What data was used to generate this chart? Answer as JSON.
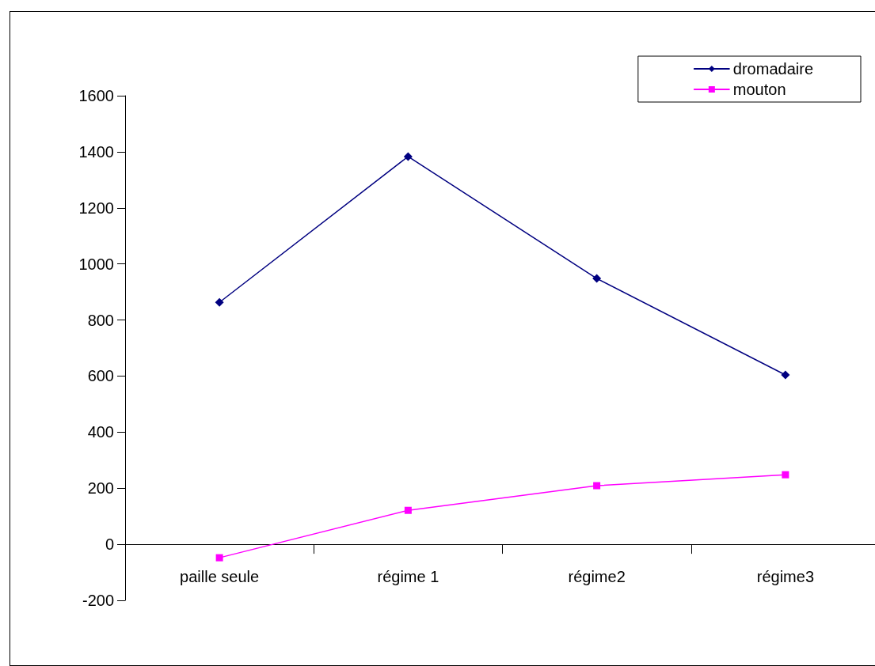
{
  "chart_data": {
    "type": "line",
    "categories": [
      "paille seule",
      "régime 1",
      "régime2",
      "régime3"
    ],
    "series": [
      {
        "name": "dromadaire",
        "color": "#000080",
        "marker": "diamond",
        "values": [
          863,
          1383,
          948,
          604
        ]
      },
      {
        "name": "mouton",
        "color": "#ff00ff",
        "marker": "square",
        "values": [
          -48,
          121,
          209,
          248
        ]
      }
    ],
    "ylim": [
      -200,
      1600
    ],
    "yticks": [
      -200,
      0,
      200,
      400,
      600,
      800,
      1000,
      1200,
      1400,
      1600
    ],
    "legend": "top right"
  }
}
